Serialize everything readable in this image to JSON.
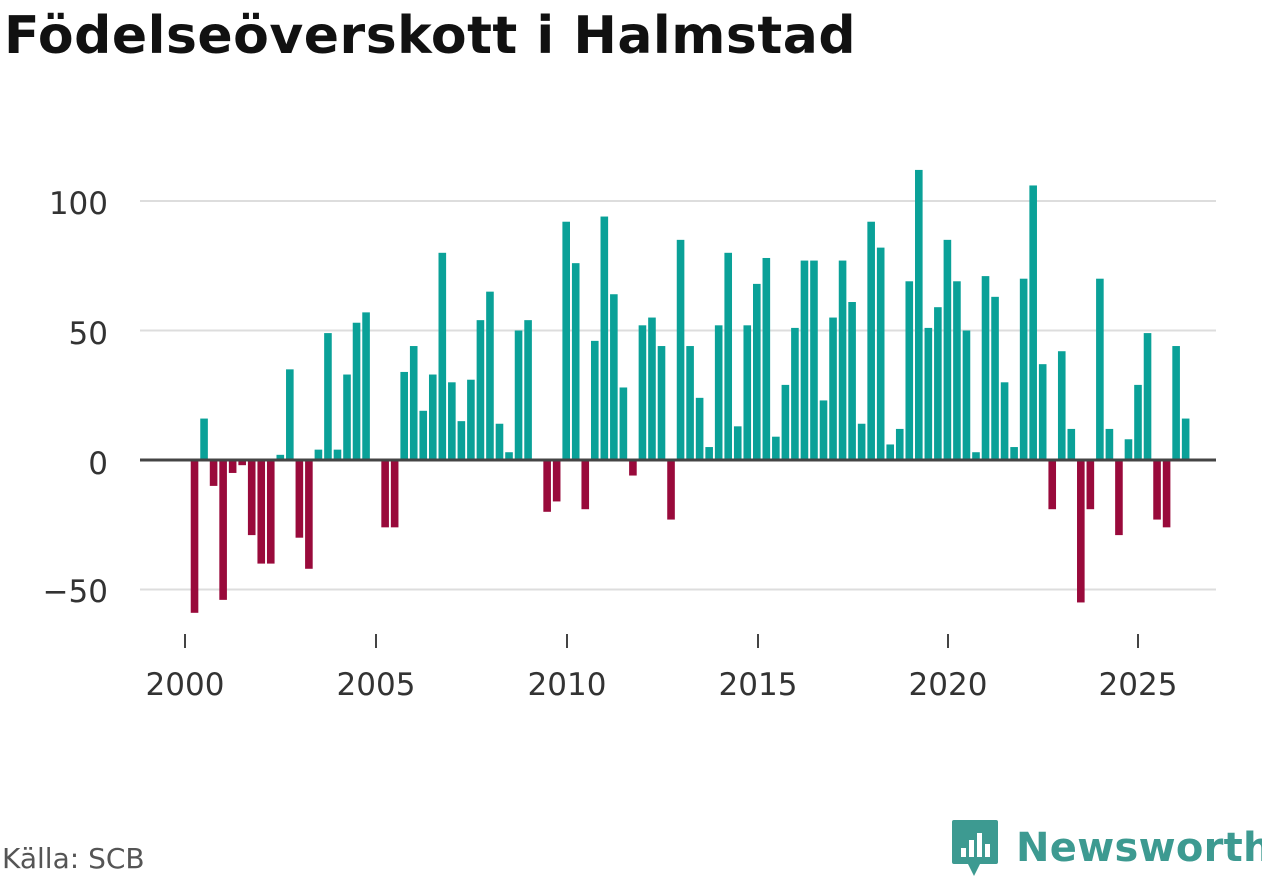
{
  "colors": {
    "positive": "#0aa198",
    "negative": "#990a3b",
    "grid": "#dddddd",
    "zero": "#444444",
    "brand": "#3d9a91"
  },
  "chart_data": {
    "type": "bar",
    "title": "Födelseöverskott i Halmstad",
    "xlabel": "",
    "ylabel": "",
    "x_start": 2000.25,
    "step": 0.25,
    "values": [
      -59,
      16,
      -10,
      -54,
      -5,
      -2,
      -29,
      -40,
      -40,
      2,
      35,
      -30,
      -42,
      4,
      49,
      4,
      33,
      53,
      57,
      0,
      -26,
      -26,
      34,
      44,
      19,
      33,
      80,
      30,
      15,
      31,
      54,
      65,
      14,
      3,
      50,
      54,
      0,
      -20,
      -16,
      92,
      76,
      -19,
      46,
      94,
      64,
      28,
      -6,
      52,
      55,
      44,
      -23,
      85,
      44,
      24,
      5,
      52,
      80,
      13,
      52,
      68,
      78,
      9,
      29,
      51,
      77,
      77,
      23,
      55,
      77,
      61,
      14,
      92,
      82,
      6,
      12,
      69,
      112,
      51,
      59,
      85,
      69,
      50,
      3,
      71,
      63,
      30,
      5,
      70,
      106,
      37,
      -19,
      42,
      12,
      -55,
      -19,
      70,
      12,
      -29,
      8,
      29,
      49,
      -23,
      -26,
      44,
      16
    ],
    "xlim": [
      2000,
      2025
    ],
    "ylim": [
      -65,
      120
    ],
    "x_ticks": [
      "2000",
      "2005",
      "2010",
      "2015",
      "2020",
      "2025"
    ],
    "y_ticks": [
      "100",
      "50",
      "0",
      "−50"
    ]
  },
  "footer": {
    "source": "Källa: SCB",
    "brand": "Newsworthy"
  }
}
